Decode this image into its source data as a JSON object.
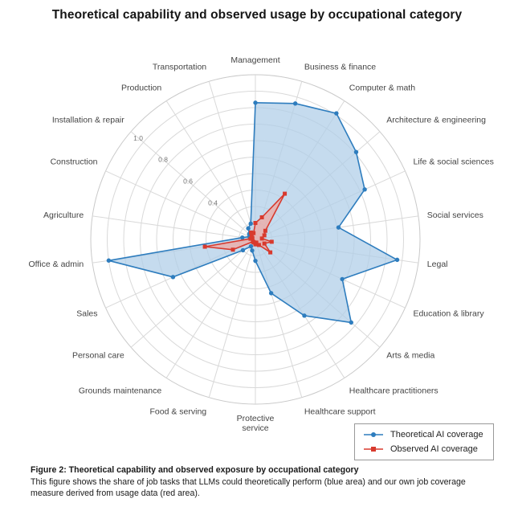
{
  "title": "Theoretical capability and observed usage by occupational category",
  "chart_data": {
    "type": "radar",
    "categories": [
      "Management",
      "Business & finance",
      "Computer & math",
      "Architecture & engineering",
      "Life & social sciences",
      "Social services",
      "Legal",
      "Education & library",
      "Arts & media",
      "Healthcare practitioners",
      "Healthcare support",
      "Protective\nservice",
      "Food & serving",
      "Grounds maintenance",
      "Personal care",
      "Sales",
      "Office & admin",
      "Agriculture",
      "Construction",
      "Installation & repair",
      "Production",
      "Transportation"
    ],
    "series": [
      {
        "name": "Theoretical AI coverage",
        "color": "#2e7dbe",
        "fill": "#aecde8",
        "marker": "circle",
        "values": [
          0.83,
          0.86,
          0.91,
          0.81,
          0.73,
          0.51,
          0.87,
          0.58,
          0.77,
          0.55,
          0.34,
          0.13,
          0.07,
          0.05,
          0.1,
          0.55,
          0.9,
          0.08,
          0.04,
          0.05,
          0.08,
          0.1
        ]
      },
      {
        "name": "Observed AI coverage",
        "color": "#d83a2e",
        "fill": "#f1a8a1",
        "marker": "square",
        "values": [
          0.1,
          0.14,
          0.33,
          0.08,
          0.06,
          0.04,
          0.1,
          0.06,
          0.12,
          0.04,
          0.02,
          0.03,
          0.02,
          0.02,
          0.02,
          0.15,
          0.31,
          0.03,
          0.02,
          0.03,
          0.05,
          0.04
        ]
      }
    ],
    "radial_ticks": [
      "0.4",
      "0.6",
      "0.8",
      "1.0"
    ],
    "rmax": 1.0,
    "ring_step": 0.1,
    "grid": true,
    "grid_color": "#d9d9d9",
    "legend_position": "bottom-right"
  },
  "caption": {
    "title": "Figure 2: Theoretical capability and observed exposure by occupational category",
    "body": "This figure shows the share of job tasks that LLMs could theoretically perform (blue area) and our own job coverage measure derived from usage data (red area)."
  }
}
